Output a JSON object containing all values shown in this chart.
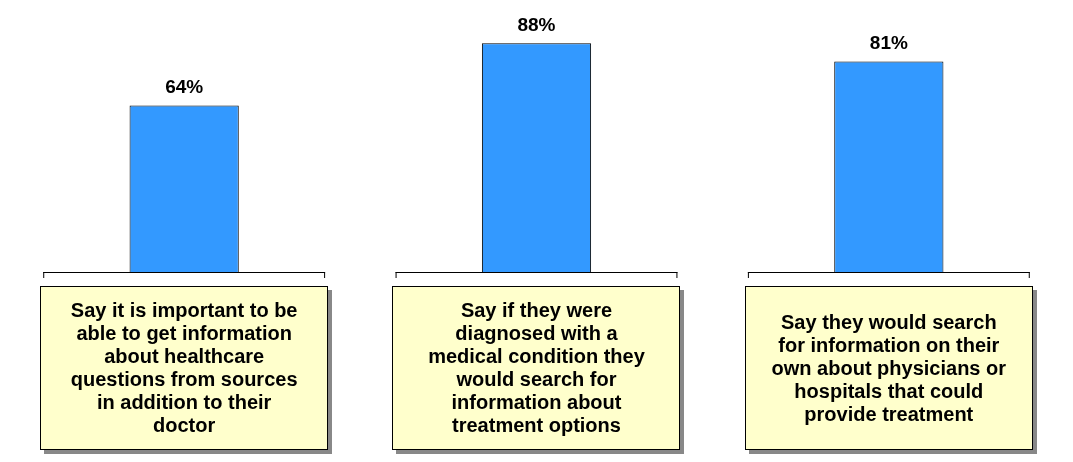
{
  "chart_data": {
    "type": "bar",
    "relative": false,
    "categories": [
      "Say it is important to be able to get information about healthcare questions from sources in addition to their doctor",
      "Say if they were diagnosed with a medical condition they would search for information about treatment options",
      "Say they would search for information on their own about physicians or hospitals that could provide treatment"
    ],
    "values": [
      64,
      88,
      81
    ],
    "value_labels": [
      "64%",
      "88%",
      "81%"
    ],
    "color": "#3399ff",
    "legend": false,
    "tick_labels": false
  }
}
